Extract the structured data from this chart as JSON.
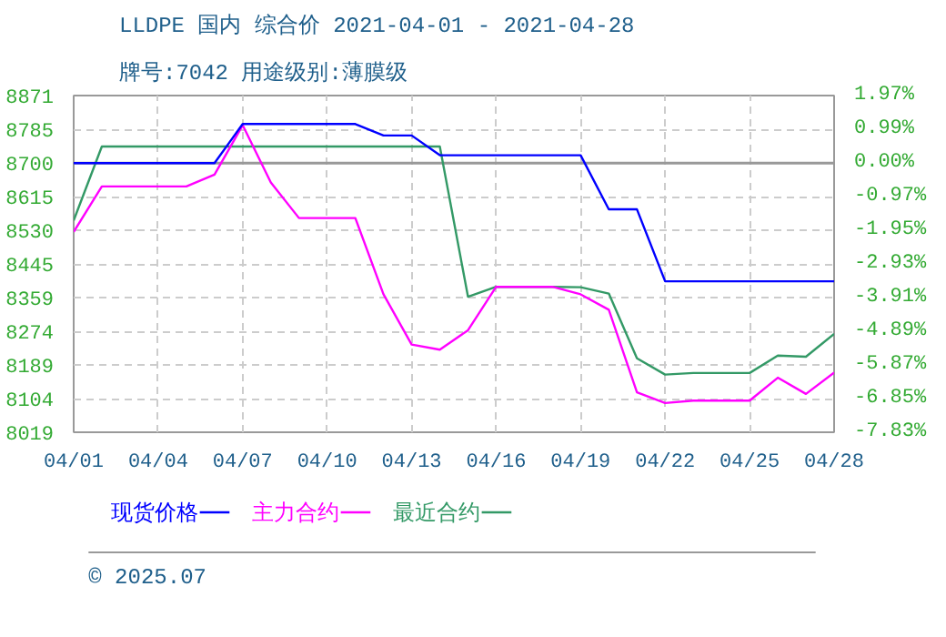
{
  "chart_data": {
    "type": "line",
    "title": "LLDPE 国内 综合价 2021-04-01 - 2021-04-28",
    "subtitle": "牌号:7042 用途级别:薄膜级",
    "x": [
      "2021-04-01",
      "2021-04-02",
      "2021-04-03",
      "2021-04-04",
      "2021-04-05",
      "2021-04-06",
      "2021-04-07",
      "2021-04-08",
      "2021-04-09",
      "2021-04-10",
      "2021-04-11",
      "2021-04-12",
      "2021-04-13",
      "2021-04-14",
      "2021-04-15",
      "2021-04-16",
      "2021-04-17",
      "2021-04-18",
      "2021-04-19",
      "2021-04-20",
      "2021-04-21",
      "2021-04-22",
      "2021-04-23",
      "2021-04-24",
      "2021-04-25",
      "2021-04-26",
      "2021-04-27",
      "2021-04-28"
    ],
    "series": [
      {
        "name": "现货价格",
        "color": "#0000ff",
        "values": [
          8700,
          8700,
          8700,
          8700,
          8700,
          8700,
          8799,
          8799,
          8799,
          8799,
          8799,
          8770,
          8770,
          8720,
          8720,
          8720,
          8720,
          8720,
          8720,
          8583,
          8583,
          8401,
          8401,
          8401,
          8401,
          8401,
          8401,
          8401
        ]
      },
      {
        "name": "主力合约",
        "color": "#ff00ff",
        "values": [
          8526,
          8641,
          8641,
          8641,
          8641,
          8671,
          8796,
          8651,
          8561,
          8561,
          8561,
          8368,
          8241,
          8228,
          8277,
          8387,
          8387,
          8387,
          8368,
          8329,
          8120,
          8093,
          8099,
          8099,
          8099,
          8157,
          8116,
          8170
        ]
      },
      {
        "name": "最近合约",
        "color": "#339966",
        "values": [
          8555,
          8742,
          8742,
          8742,
          8742,
          8742,
          8742,
          8742,
          8742,
          8742,
          8742,
          8742,
          8742,
          8742,
          8362,
          8387,
          8387,
          8387,
          8386,
          8370,
          8206,
          8165,
          8169,
          8169,
          8169,
          8213,
          8210,
          8268
        ]
      }
    ],
    "xlim": [
      "2021-04-01",
      "2021-04-28"
    ],
    "xticks": [
      {
        "value": "2021-04-01",
        "label": "04/01"
      },
      {
        "value": "2021-04-04",
        "label": "04/04"
      },
      {
        "value": "2021-04-07",
        "label": "04/07"
      },
      {
        "value": "2021-04-10",
        "label": "04/10"
      },
      {
        "value": "2021-04-13",
        "label": "04/13"
      },
      {
        "value": "2021-04-16",
        "label": "04/16"
      },
      {
        "value": "2021-04-19",
        "label": "04/19"
      },
      {
        "value": "2021-04-22",
        "label": "04/22"
      },
      {
        "value": "2021-04-25",
        "label": "04/25"
      },
      {
        "value": "2021-04-28",
        "label": "04/28"
      }
    ],
    "ylim": [
      8019,
      8871
    ],
    "yticks": [
      8019,
      8104,
      8189,
      8274,
      8359,
      8445,
      8530,
      8615,
      8700,
      8785,
      8871
    ],
    "y2lim": [
      -7.83,
      1.97
    ],
    "y2ticks": [
      {
        "value": 1.97,
        "label": "1.97%"
      },
      {
        "value": 0.99,
        "label": "0.99%"
      },
      {
        "value": 0,
        "label": "0.00%"
      },
      {
        "value": -0.97,
        "label": "-0.97%"
      },
      {
        "value": -1.95,
        "label": "-1.95%"
      },
      {
        "value": -2.93,
        "label": "-2.93%"
      },
      {
        "value": -3.91,
        "label": "-3.91%"
      },
      {
        "value": -4.89,
        "label": "-4.89%"
      },
      {
        "value": -5.87,
        "label": "-5.87%"
      },
      {
        "value": -6.85,
        "label": "-6.85%"
      },
      {
        "value": -7.83,
        "label": "-7.83%"
      }
    ],
    "ref_lines": [
      {
        "axis": "y",
        "value": 8700,
        "color": "#999999"
      }
    ],
    "grid": true,
    "legend": "bottom",
    "annotations": [
      "© 2025.07"
    ]
  }
}
